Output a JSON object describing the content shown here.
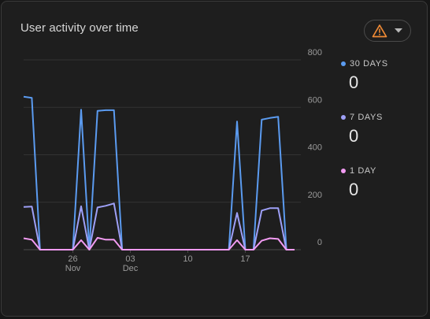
{
  "card": {
    "title": "User activity over time",
    "filter_icon": "warning-icon",
    "dropdown_icon": "caret-down-icon"
  },
  "legend": [
    {
      "label": "30 DAYS",
      "value": "0",
      "color": "#5b9bf0"
    },
    {
      "label": "7 DAYS",
      "value": "0",
      "color": "#9ea0f7"
    },
    {
      "label": "1 DAY",
      "value": "0",
      "color": "#f29bf2"
    }
  ],
  "chart_data": {
    "type": "line",
    "title": "User activity over time",
    "xlabel": "",
    "ylabel": "",
    "ylim": [
      0,
      800
    ],
    "y_ticks": [
      0,
      200,
      400,
      600,
      800
    ],
    "x_ticks": [
      {
        "label": "26",
        "sub": "Nov",
        "day": 26
      },
      {
        "label": "03",
        "sub": "Dec",
        "day": 33
      },
      {
        "label": "10",
        "sub": "",
        "day": 40
      },
      {
        "label": "17",
        "sub": "",
        "day": 47
      }
    ],
    "grid": true,
    "legend_position": "right",
    "x": [
      20,
      21,
      22,
      23,
      24,
      25,
      26,
      27,
      28,
      29,
      30,
      31,
      32,
      33,
      34,
      35,
      36,
      37,
      38,
      39,
      40,
      41,
      42,
      43,
      44,
      45,
      46,
      47,
      48,
      49,
      50,
      51,
      52,
      53
    ],
    "series": [
      {
        "name": "30 DAYS",
        "color": "#5b9bf0",
        "values": [
          645,
          640,
          0,
          0,
          0,
          0,
          0,
          590,
          0,
          585,
          588,
          588,
          0,
          0,
          0,
          0,
          0,
          0,
          0,
          0,
          0,
          0,
          0,
          0,
          0,
          0,
          540,
          0,
          0,
          548,
          555,
          560,
          0,
          0
        ]
      },
      {
        "name": "7 DAYS",
        "color": "#9ea0f7",
        "values": [
          180,
          182,
          0,
          0,
          0,
          0,
          0,
          183,
          0,
          178,
          185,
          195,
          0,
          0,
          0,
          0,
          0,
          0,
          0,
          0,
          0,
          0,
          0,
          0,
          0,
          0,
          155,
          0,
          0,
          165,
          175,
          175,
          0,
          0
        ]
      },
      {
        "name": "1 DAY",
        "color": "#f29bf2",
        "values": [
          48,
          42,
          0,
          0,
          0,
          0,
          0,
          40,
          0,
          50,
          42,
          42,
          0,
          0,
          0,
          0,
          0,
          0,
          0,
          0,
          0,
          0,
          0,
          0,
          0,
          0,
          40,
          0,
          0,
          38,
          48,
          45,
          0,
          0
        ]
      }
    ]
  }
}
